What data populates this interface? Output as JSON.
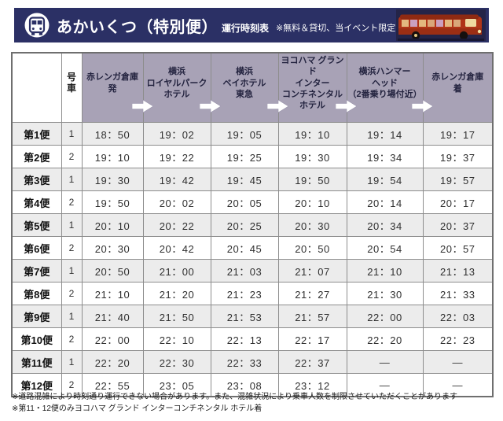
{
  "banner": {
    "title": "あかいくつ（特別便）",
    "subtitle": "運行時刻表",
    "note": "※無料＆貸切、当イベント限定の時刻表です",
    "icon": "bus-front-in-circle-icon",
    "photo": "red-sightseeing-bus-night-photo"
  },
  "colors": {
    "banner_bg": "#2b3065",
    "header_bg": "#a8a2b6",
    "stripe_bg": "#ececec",
    "border": "#8d8d8d",
    "arrow": "#ffffff",
    "bus_red": "#b03418"
  },
  "table": {
    "col_headers": {
      "corner": "",
      "car": "号\n車",
      "stops": [
        "赤レンガ倉庫\n発",
        "横浜\nロイヤルパーク\nホテル",
        "横浜\nベイホテル\n東急",
        "ヨコハマ グランド\nインター\nコンチネンタル\nホテル",
        "横浜ハンマー\nヘッド\n（2番乗り場付近）",
        "赤レンガ倉庫\n着"
      ]
    },
    "rows": [
      {
        "label": "第1便",
        "car": "1",
        "times": [
          "18：50",
          "19：02",
          "19：05",
          "19：10",
          "19：14",
          "19：17"
        ]
      },
      {
        "label": "第2便",
        "car": "2",
        "times": [
          "19：10",
          "19：22",
          "19：25",
          "19：30",
          "19：34",
          "19：37"
        ]
      },
      {
        "label": "第3便",
        "car": "1",
        "times": [
          "19：30",
          "19：42",
          "19：45",
          "19：50",
          "19：54",
          "19：57"
        ]
      },
      {
        "label": "第4便",
        "car": "2",
        "times": [
          "19：50",
          "20：02",
          "20：05",
          "20：10",
          "20：14",
          "20：17"
        ]
      },
      {
        "label": "第5便",
        "car": "1",
        "times": [
          "20：10",
          "20：22",
          "20：25",
          "20：30",
          "20：34",
          "20：37"
        ]
      },
      {
        "label": "第6便",
        "car": "2",
        "times": [
          "20：30",
          "20：42",
          "20：45",
          "20：50",
          "20：54",
          "20：57"
        ]
      },
      {
        "label": "第7便",
        "car": "1",
        "times": [
          "20：50",
          "21：00",
          "21：03",
          "21：07",
          "21：10",
          "21：13"
        ]
      },
      {
        "label": "第8便",
        "car": "2",
        "times": [
          "21：10",
          "21：20",
          "21：23",
          "21：27",
          "21：30",
          "21：33"
        ]
      },
      {
        "label": "第9便",
        "car": "1",
        "times": [
          "21：40",
          "21：50",
          "21：53",
          "21：57",
          "22：00",
          "22：03"
        ]
      },
      {
        "label": "第10便",
        "car": "2",
        "times": [
          "22：00",
          "22：10",
          "22：13",
          "22：17",
          "22：20",
          "22：23"
        ]
      },
      {
        "label": "第11便",
        "car": "1",
        "times": [
          "22：20",
          "22：30",
          "22：33",
          "22：37",
          "―",
          "―"
        ]
      },
      {
        "label": "第12便",
        "car": "2",
        "times": [
          "22：55",
          "23：05",
          "23：08",
          "23：12",
          "―",
          "―"
        ]
      }
    ]
  },
  "notes": [
    "※道路混雑により時刻通り運行できない場合があります。また、混雑状況により乗車人数を制限させていただくことがあります",
    "※第11・12便のみヨコハマ グランド インターコンチネンタル ホテル着"
  ]
}
